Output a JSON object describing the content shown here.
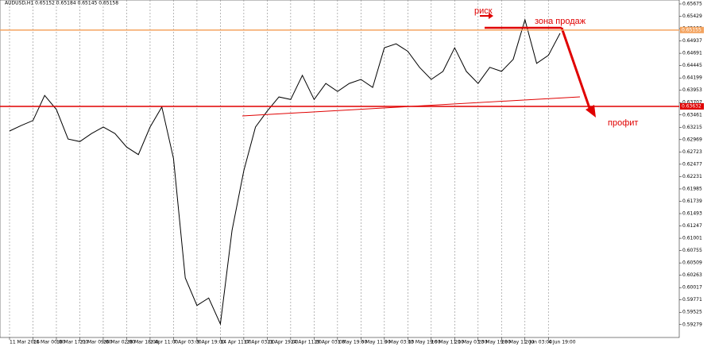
{
  "chart_data": {
    "type": "line",
    "title": "AUDUSD,H1 0.65152 0.65184 0.65145 0.65158",
    "categories": [
      "11 Mar 2025",
      null,
      "14 Mar 00:00",
      null,
      "18 Mar 17:00",
      null,
      "21 Mar 09:00",
      null,
      "26 Mar 02:00",
      null,
      "28 Mar 18:00",
      null,
      "2 Apr 11:00",
      null,
      "7 Apr 03:00",
      null,
      "9 Apr 19:00",
      null,
      "14 Apr 11:00",
      null,
      "17 Apr 03:00",
      null,
      "21 Apr 19:00",
      null,
      "24 Apr 11:00",
      null,
      "29 Apr 03:00",
      null,
      "1 May 19:00",
      null,
      "6 May 11:00",
      null,
      "9 May 03:00",
      null,
      "13 May 19:00",
      null,
      "16 May 11:00",
      null,
      "21 May 03:00",
      null,
      "23 May 19:00",
      null,
      "28 May 11:00",
      null,
      "2 Jun 03:00",
      null,
      "4 Jun 19:00",
      null
    ],
    "series": [
      {
        "name": "AUDUSD",
        "color": "#000000",
        "values": [
          0.6314,
          0.6325,
          0.6335,
          0.6385,
          0.6357,
          0.6298,
          0.6293,
          0.6309,
          0.6322,
          0.6309,
          0.6282,
          0.6267,
          0.6322,
          0.6362,
          0.6259,
          0.6021,
          0.5966,
          0.5981,
          0.5929,
          0.6116,
          0.6235,
          0.6322,
          0.6354,
          0.6382,
          0.6377,
          0.6425,
          0.6377,
          0.6409,
          0.6393,
          0.6409,
          0.6417,
          0.6401,
          0.648,
          0.6488,
          0.6473,
          0.6441,
          0.6417,
          0.6433,
          0.648,
          0.6433,
          0.6409,
          0.6441,
          0.6433,
          0.6457,
          0.6536,
          0.6449,
          0.6465,
          0.6509
        ]
      }
    ],
    "ylim": [
      0.59022,
      0.65754
    ],
    "yticks": [
      0.65675,
      0.65429,
      0.65183,
      0.64937,
      0.64691,
      0.64445,
      0.64199,
      0.63953,
      0.63707,
      0.63461,
      0.63215,
      0.62969,
      0.62723,
      0.62477,
      0.62231,
      0.61985,
      0.61739,
      0.61493,
      0.61247,
      0.61001,
      0.60755,
      0.60509,
      0.60263,
      0.60017,
      0.59771,
      0.59525,
      0.59279
    ],
    "levels": [
      {
        "value": 0.65155,
        "color": "#f4a460"
      },
      {
        "value": 0.63632,
        "color": "#e00000"
      }
    ],
    "grid": true,
    "annotations": [
      "риск",
      "зона продаж",
      "профит"
    ]
  }
}
